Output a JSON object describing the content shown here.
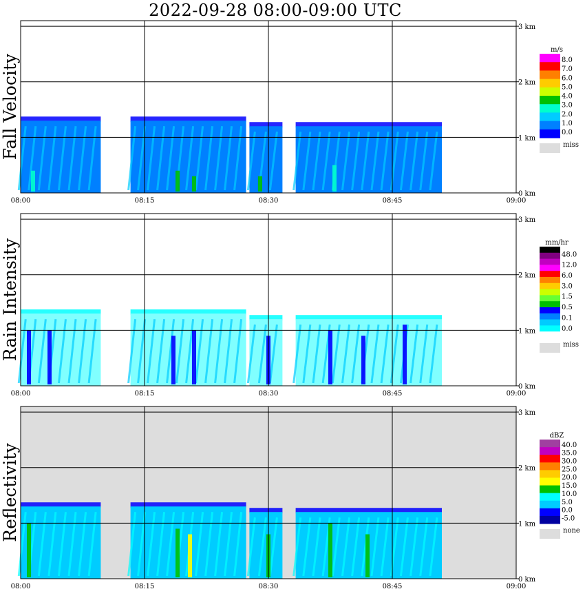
{
  "title": "2022-09-28   08:00-09:00 UTC",
  "chart_data": {
    "type": "heatmap",
    "title": "2022-09-28   08:00-09:00 UTC",
    "x_ticks": [
      "08:00",
      "08:15",
      "08:30",
      "08:45",
      "09:00"
    ],
    "x_range_minutes": [
      0,
      60
    ],
    "y_ticks": [
      "0 km",
      "1 km",
      "2 km",
      "3 km"
    ],
    "y_range_km": [
      0,
      3.1
    ],
    "grid": true,
    "panels": [
      {
        "name": "fall-velocity",
        "ylabel": "Fall Velocity",
        "unit": "m/s",
        "background": "#ffffff",
        "scale_labels": [
          "8.0",
          "7.0",
          "6.0",
          "5.0",
          "4.0",
          "3.0",
          "2.0",
          "1.0",
          "0.0"
        ],
        "scale_colors": [
          "#ff00ff",
          "#ff0000",
          "#ff8000",
          "#ffcc00",
          "#ccff00",
          "#00c000",
          "#00ffcc",
          "#00ccff",
          "#0080ff",
          "#0000ff"
        ],
        "missing_label": "miss",
        "missing_color": "#dddddd",
        "echoes": [
          {
            "start": 0.0,
            "end": 9.7,
            "top": 1.3,
            "color": "#0080ff"
          },
          {
            "start": 13.3,
            "end": 27.3,
            "top": 1.3,
            "color": "#0080ff"
          },
          {
            "start": 27.7,
            "end": 31.7,
            "top": 1.2,
            "color": "#0080ff"
          },
          {
            "start": 33.3,
            "end": 51.0,
            "top": 1.2,
            "color": "#0080ff"
          }
        ],
        "cores": [
          {
            "t": 1.5,
            "h": 0.4,
            "color": "#00ffcc"
          },
          {
            "t": 19.0,
            "h": 0.4,
            "color": "#00c000"
          },
          {
            "t": 21.0,
            "h": 0.3,
            "color": "#00c000"
          },
          {
            "t": 29.0,
            "h": 0.3,
            "color": "#00c000"
          },
          {
            "t": 38.0,
            "h": 0.5,
            "color": "#00ffcc"
          }
        ]
      },
      {
        "name": "rain-intensity",
        "ylabel": "Rain Intensity",
        "unit": "mm/hr",
        "background": "#ffffff",
        "scale_labels": [
          "48.0",
          "12.0",
          "6.0",
          "3.0",
          "1.5",
          "0.5",
          "0.1",
          "0.0"
        ],
        "scale_colors": [
          "#000000",
          "#800080",
          "#c000c0",
          "#ff00ff",
          "#ff0000",
          "#ff8000",
          "#ffcc00",
          "#ccff00",
          "#66ff33",
          "#00c000",
          "#0000ff",
          "#0080ff",
          "#00ccff",
          "#00ffff",
          "#ffffff"
        ],
        "missing_label": "miss",
        "missing_color": "#dddddd",
        "echoes": [
          {
            "start": 0.0,
            "end": 9.7,
            "top": 1.3,
            "color": "#80ffff"
          },
          {
            "start": 13.3,
            "end": 27.3,
            "top": 1.3,
            "color": "#80ffff"
          },
          {
            "start": 27.7,
            "end": 31.7,
            "top": 1.2,
            "color": "#80ffff"
          },
          {
            "start": 33.3,
            "end": 51.0,
            "top": 1.2,
            "color": "#80ffff"
          }
        ],
        "cores": [
          {
            "t": 1.0,
            "h": 1.0,
            "color": "#0000ff"
          },
          {
            "t": 3.5,
            "h": 1.0,
            "color": "#0000ff"
          },
          {
            "t": 18.5,
            "h": 0.9,
            "color": "#0000ff"
          },
          {
            "t": 21.0,
            "h": 1.0,
            "color": "#0000ff"
          },
          {
            "t": 30.0,
            "h": 0.9,
            "color": "#0000ff"
          },
          {
            "t": 37.5,
            "h": 1.0,
            "color": "#0000ff"
          },
          {
            "t": 41.5,
            "h": 0.9,
            "color": "#0000ff"
          },
          {
            "t": 46.5,
            "h": 1.1,
            "color": "#0000ff"
          }
        ]
      },
      {
        "name": "reflectivity",
        "ylabel": "Reflectivity",
        "unit": "dBZ",
        "background": "#dddddd",
        "scale_labels": [
          "40.0",
          "35.0",
          "30.0",
          "25.0",
          "20.0",
          "15.0",
          "10.0",
          "5.0",
          "0.0",
          "-5.0"
        ],
        "scale_colors": [
          "#a040a0",
          "#c000c0",
          "#ff0000",
          "#ff8000",
          "#ffcc00",
          "#ffff00",
          "#00c000",
          "#00ffff",
          "#00ccff",
          "#0000ff",
          "#0000a0"
        ],
        "missing_label": "none",
        "missing_color": "#dddddd",
        "echoes": [
          {
            "start": 0.0,
            "end": 9.7,
            "top": 1.3,
            "color": "#00ccff"
          },
          {
            "start": 13.3,
            "end": 27.3,
            "top": 1.3,
            "color": "#00ccff"
          },
          {
            "start": 27.7,
            "end": 31.7,
            "top": 1.2,
            "color": "#00ccff"
          },
          {
            "start": 33.3,
            "end": 51.0,
            "top": 1.2,
            "color": "#00ccff"
          }
        ],
        "cores": [
          {
            "t": 1.0,
            "h": 1.0,
            "color": "#00c000"
          },
          {
            "t": 19.0,
            "h": 0.9,
            "color": "#00c000"
          },
          {
            "t": 20.5,
            "h": 0.8,
            "color": "#ffff00"
          },
          {
            "t": 30.0,
            "h": 0.8,
            "color": "#00c000"
          },
          {
            "t": 37.5,
            "h": 1.0,
            "color": "#00c000"
          },
          {
            "t": 42.0,
            "h": 0.8,
            "color": "#00c000"
          }
        ]
      }
    ]
  }
}
